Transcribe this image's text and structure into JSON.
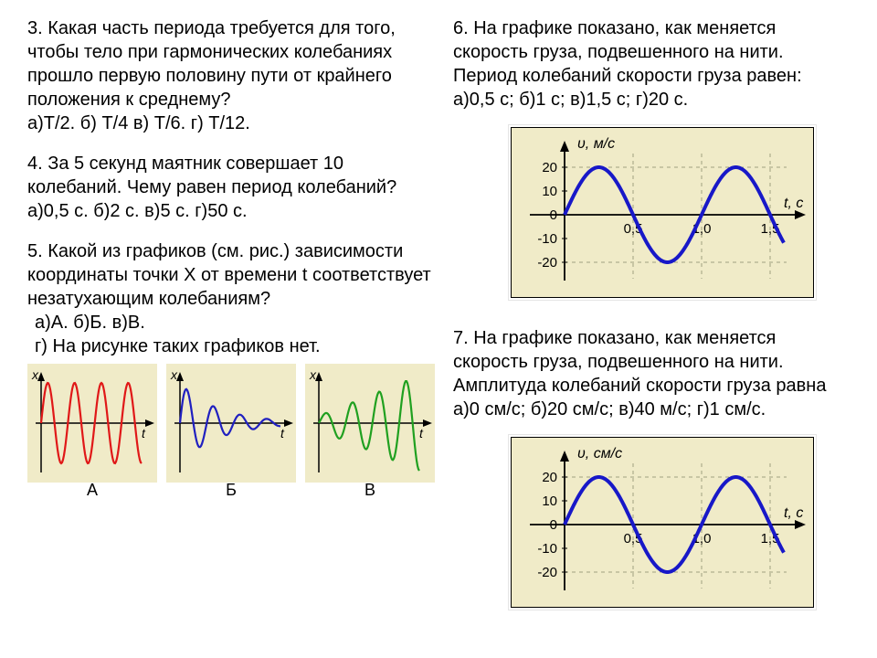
{
  "left": {
    "q3": {
      "text": "3. Какая часть периода требуется для того, чтобы тело при гармонических колебаниях прошло первую половину пути от крайнего положения к среднему?",
      "options": "а)T/2.  б) T/4 в)  T/6. г) T/12."
    },
    "q4": {
      "text": "4. За 5 секунд маятник совершает 10 колебаний. Чему равен период колебаний?",
      "options": "а)0,5 с.   б)2 с.   в)5 с.   г)50 с."
    },
    "q5": {
      "text": "5. Какой из графиков (см. рис.) зависимости координаты точки X от времени t соответствует незатухающим колебаниям?",
      "opts1": " а)А.    б)Б.    в)В.",
      "opts2": " г) На рисунке таких графиков нет.",
      "axis_x_label": "x",
      "axis_t_label": "t",
      "panels": {
        "A": {
          "label": "А",
          "color": "#e01818",
          "type": "undamped"
        },
        "B": {
          "label": "Б",
          "color": "#2020c0",
          "type": "damped"
        },
        "V": {
          "label": "В",
          "color": "#20a020",
          "type": "growing"
        }
      }
    }
  },
  "right": {
    "q6": {
      "text": "6. На графике показано, как меняется скорость груза, подвешенного на нити. Период колебаний скорости груза равен:",
      "options": " а)0,5 с;    б)1 с;    в)1,5 с;    г)20 с.",
      "graph": {
        "y_label": "υ, м/с",
        "x_label": "t, с",
        "y_ticks": [
          -20,
          -10,
          0,
          10,
          20
        ],
        "x_ticks": [
          "0,5",
          "1,0",
          "1,5"
        ],
        "curve_color": "#1818c8",
        "bg_color": "#f0ebc8",
        "axis_color": "#000000",
        "grid_color": "#a0a080",
        "amplitude": 20,
        "period": 1.0,
        "line_width": 4
      }
    },
    "q7": {
      "text": "7. На графике показано, как меняется скорость груза, подвешенного на нити. Амплитуда колебаний скорости груза равна",
      "options": " а)0 см/с;   б)20 см/с;   в)40 м/с;   г)1 см/с.",
      "graph": {
        "y_label": "υ, см/с",
        "x_label": "t, с",
        "y_ticks": [
          -20,
          -10,
          0,
          10,
          20
        ],
        "x_ticks": [
          "0,5",
          "1,0",
          "1,5"
        ],
        "curve_color": "#1818c8",
        "bg_color": "#f0ebc8",
        "axis_color": "#000000",
        "grid_color": "#a0a080",
        "amplitude": 20,
        "period": 1.0,
        "line_width": 4
      }
    }
  }
}
